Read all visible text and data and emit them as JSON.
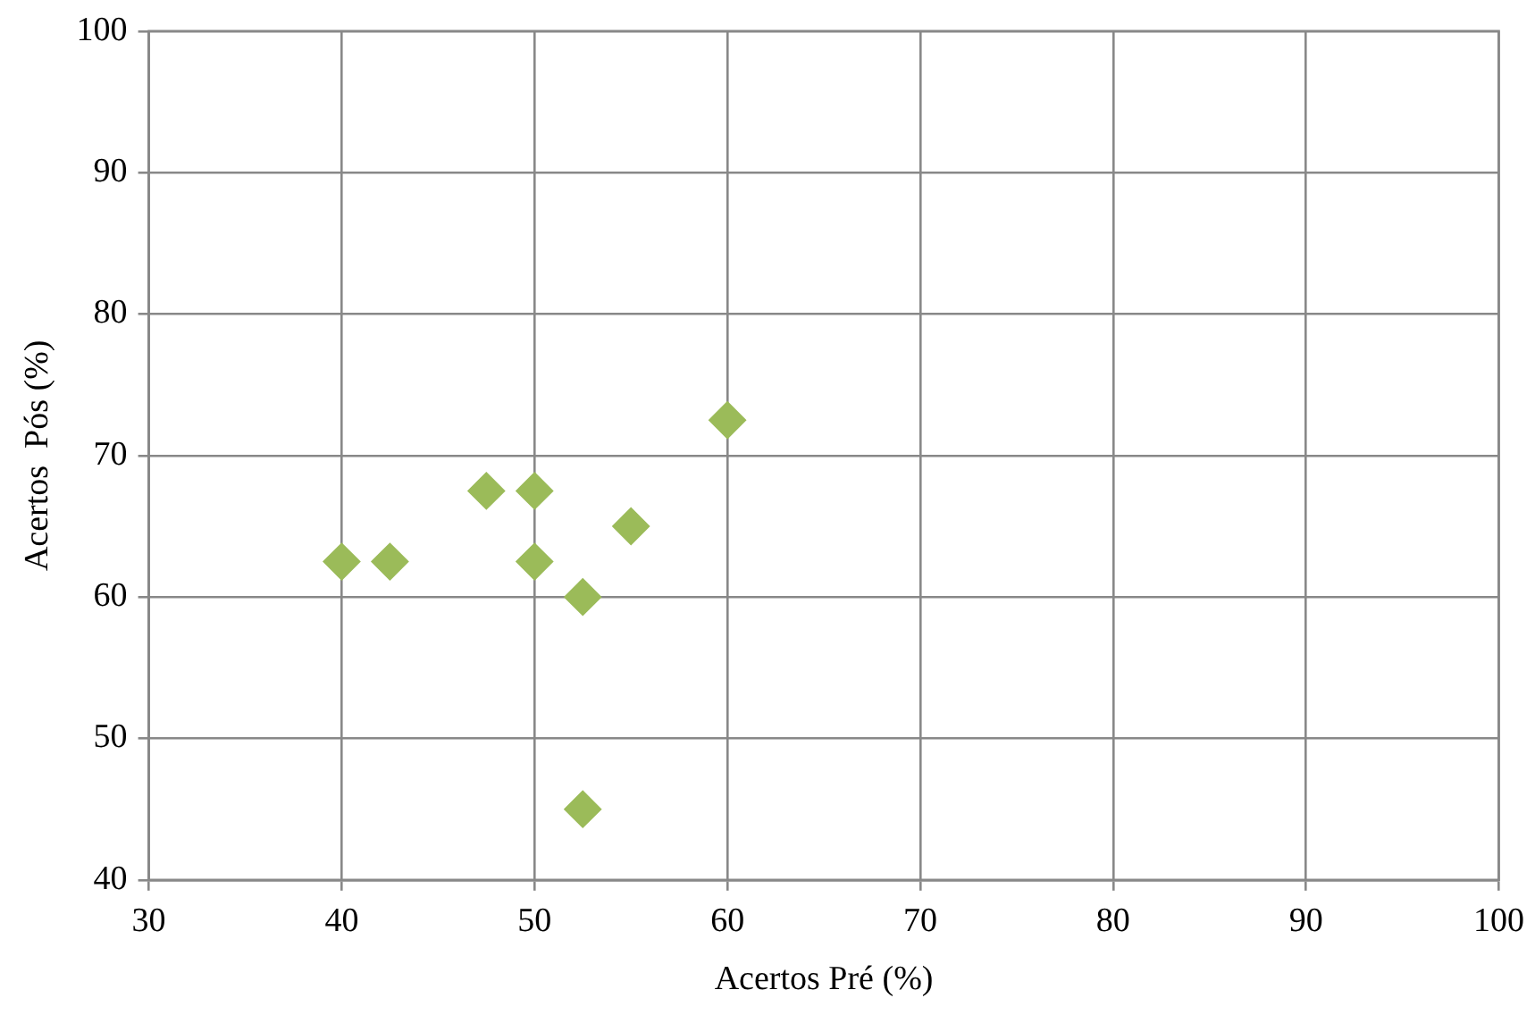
{
  "chart_data": {
    "type": "scatter",
    "xlabel": "Acertos Pré (%)",
    "ylabel": "Acertos  Pós (%)",
    "x": [
      40,
      42.5,
      47.5,
      50,
      50,
      52.5,
      55,
      60,
      52.5
    ],
    "values": [
      62.5,
      62.5,
      67.5,
      67.5,
      62.5,
      60,
      65,
      72.5,
      45
    ],
    "color": "#9bbb59",
    "marker": "diamond",
    "grid": true,
    "legend": false,
    "xlim": [
      30,
      100
    ],
    "xticks": [
      30,
      40,
      50,
      60,
      70,
      80,
      90,
      100
    ],
    "ylim": [
      40,
      100
    ],
    "yticks": [
      40,
      50,
      60,
      70,
      80,
      90,
      100
    ]
  }
}
